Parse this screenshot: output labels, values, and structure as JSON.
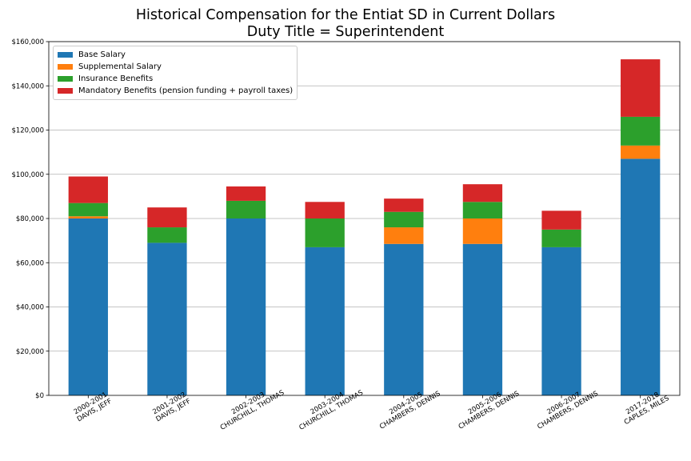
{
  "chart_data": {
    "type": "bar",
    "stacked": true,
    "title": "Historical Compensation for the Entiat SD in Current Dollars",
    "subtitle": "Duty Title = Superintendent",
    "categories": [
      [
        "2000-2001",
        "DAVIS, JEFF"
      ],
      [
        "2001-2002",
        "DAVIS, JEFF"
      ],
      [
        "2002-2003",
        "CHURCHILL, THOMAS"
      ],
      [
        "2003-2004",
        "CHURCHILL, THOMAS"
      ],
      [
        "2004-2005",
        "CHAMBERS, DENNIS"
      ],
      [
        "2005-2006",
        "CHAMBERS, DENNIS"
      ],
      [
        "2006-2007",
        "CHAMBERS, DENNIS"
      ],
      [
        "2017-2018",
        "CAPLES, MILES"
      ]
    ],
    "series": [
      {
        "name": "Base Salary",
        "color": "#1f77b4",
        "values": [
          80000,
          69000,
          80000,
          67000,
          68500,
          68500,
          67000,
          107000
        ]
      },
      {
        "name": "Supplemental Salary",
        "color": "#ff7f0e",
        "values": [
          1000,
          0,
          0,
          0,
          7500,
          11500,
          0,
          6000
        ]
      },
      {
        "name": "Insurance Benefits",
        "color": "#2ca02c",
        "values": [
          6000,
          7000,
          8000,
          13000,
          7000,
          7500,
          8000,
          13000
        ]
      },
      {
        "name": "Mandatory Benefits (pension funding + payroll taxes)",
        "color": "#d62728",
        "values": [
          12000,
          9000,
          6500,
          7500,
          6000,
          8000,
          8500,
          26000
        ]
      }
    ],
    "y_ticks": [
      "$0",
      "$20,000",
      "$40,000",
      "$60,000",
      "$80,000",
      "$100,000",
      "$120,000",
      "$140,000",
      "$160,000"
    ],
    "ylim": [
      0,
      160000
    ],
    "grid": "horizontal",
    "legend_position": "top-left"
  }
}
